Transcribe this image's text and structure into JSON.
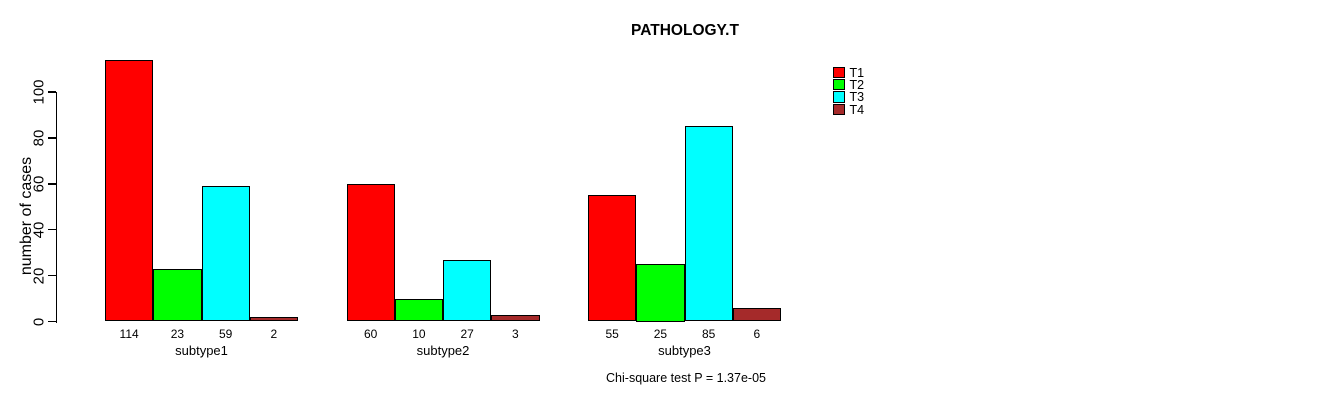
{
  "chart_data": {
    "type": "bar",
    "title": "PATHOLOGY.T",
    "ylabel": "number of cases",
    "annotation": "Chi-square test P = 1.37e-05",
    "categories": [
      "subtype1",
      "subtype2",
      "subtype3"
    ],
    "series": [
      {
        "name": "T1",
        "color": "#FF0000",
        "values": [
          114,
          60,
          55
        ]
      },
      {
        "name": "T2",
        "color": "#00FF00",
        "values": [
          23,
          10,
          25
        ]
      },
      {
        "name": "T3",
        "color": "#00FFFF",
        "values": [
          59,
          27,
          85
        ]
      },
      {
        "name": "T4",
        "color": "#A52A2A",
        "values": [
          2,
          3,
          6
        ]
      }
    ],
    "bar_value_labels": [
      [
        114,
        23,
        59,
        2
      ],
      [
        60,
        10,
        27,
        3
      ],
      [
        55,
        25,
        85,
        6
      ]
    ],
    "yticks": [
      0,
      20,
      40,
      60,
      80,
      100
    ],
    "ylim": [
      0,
      115
    ],
    "grid": false,
    "legend_position": "top-right",
    "bar_outline_color": "#000000",
    "background_color": "#FFFFFF",
    "text_color": "#000000"
  }
}
